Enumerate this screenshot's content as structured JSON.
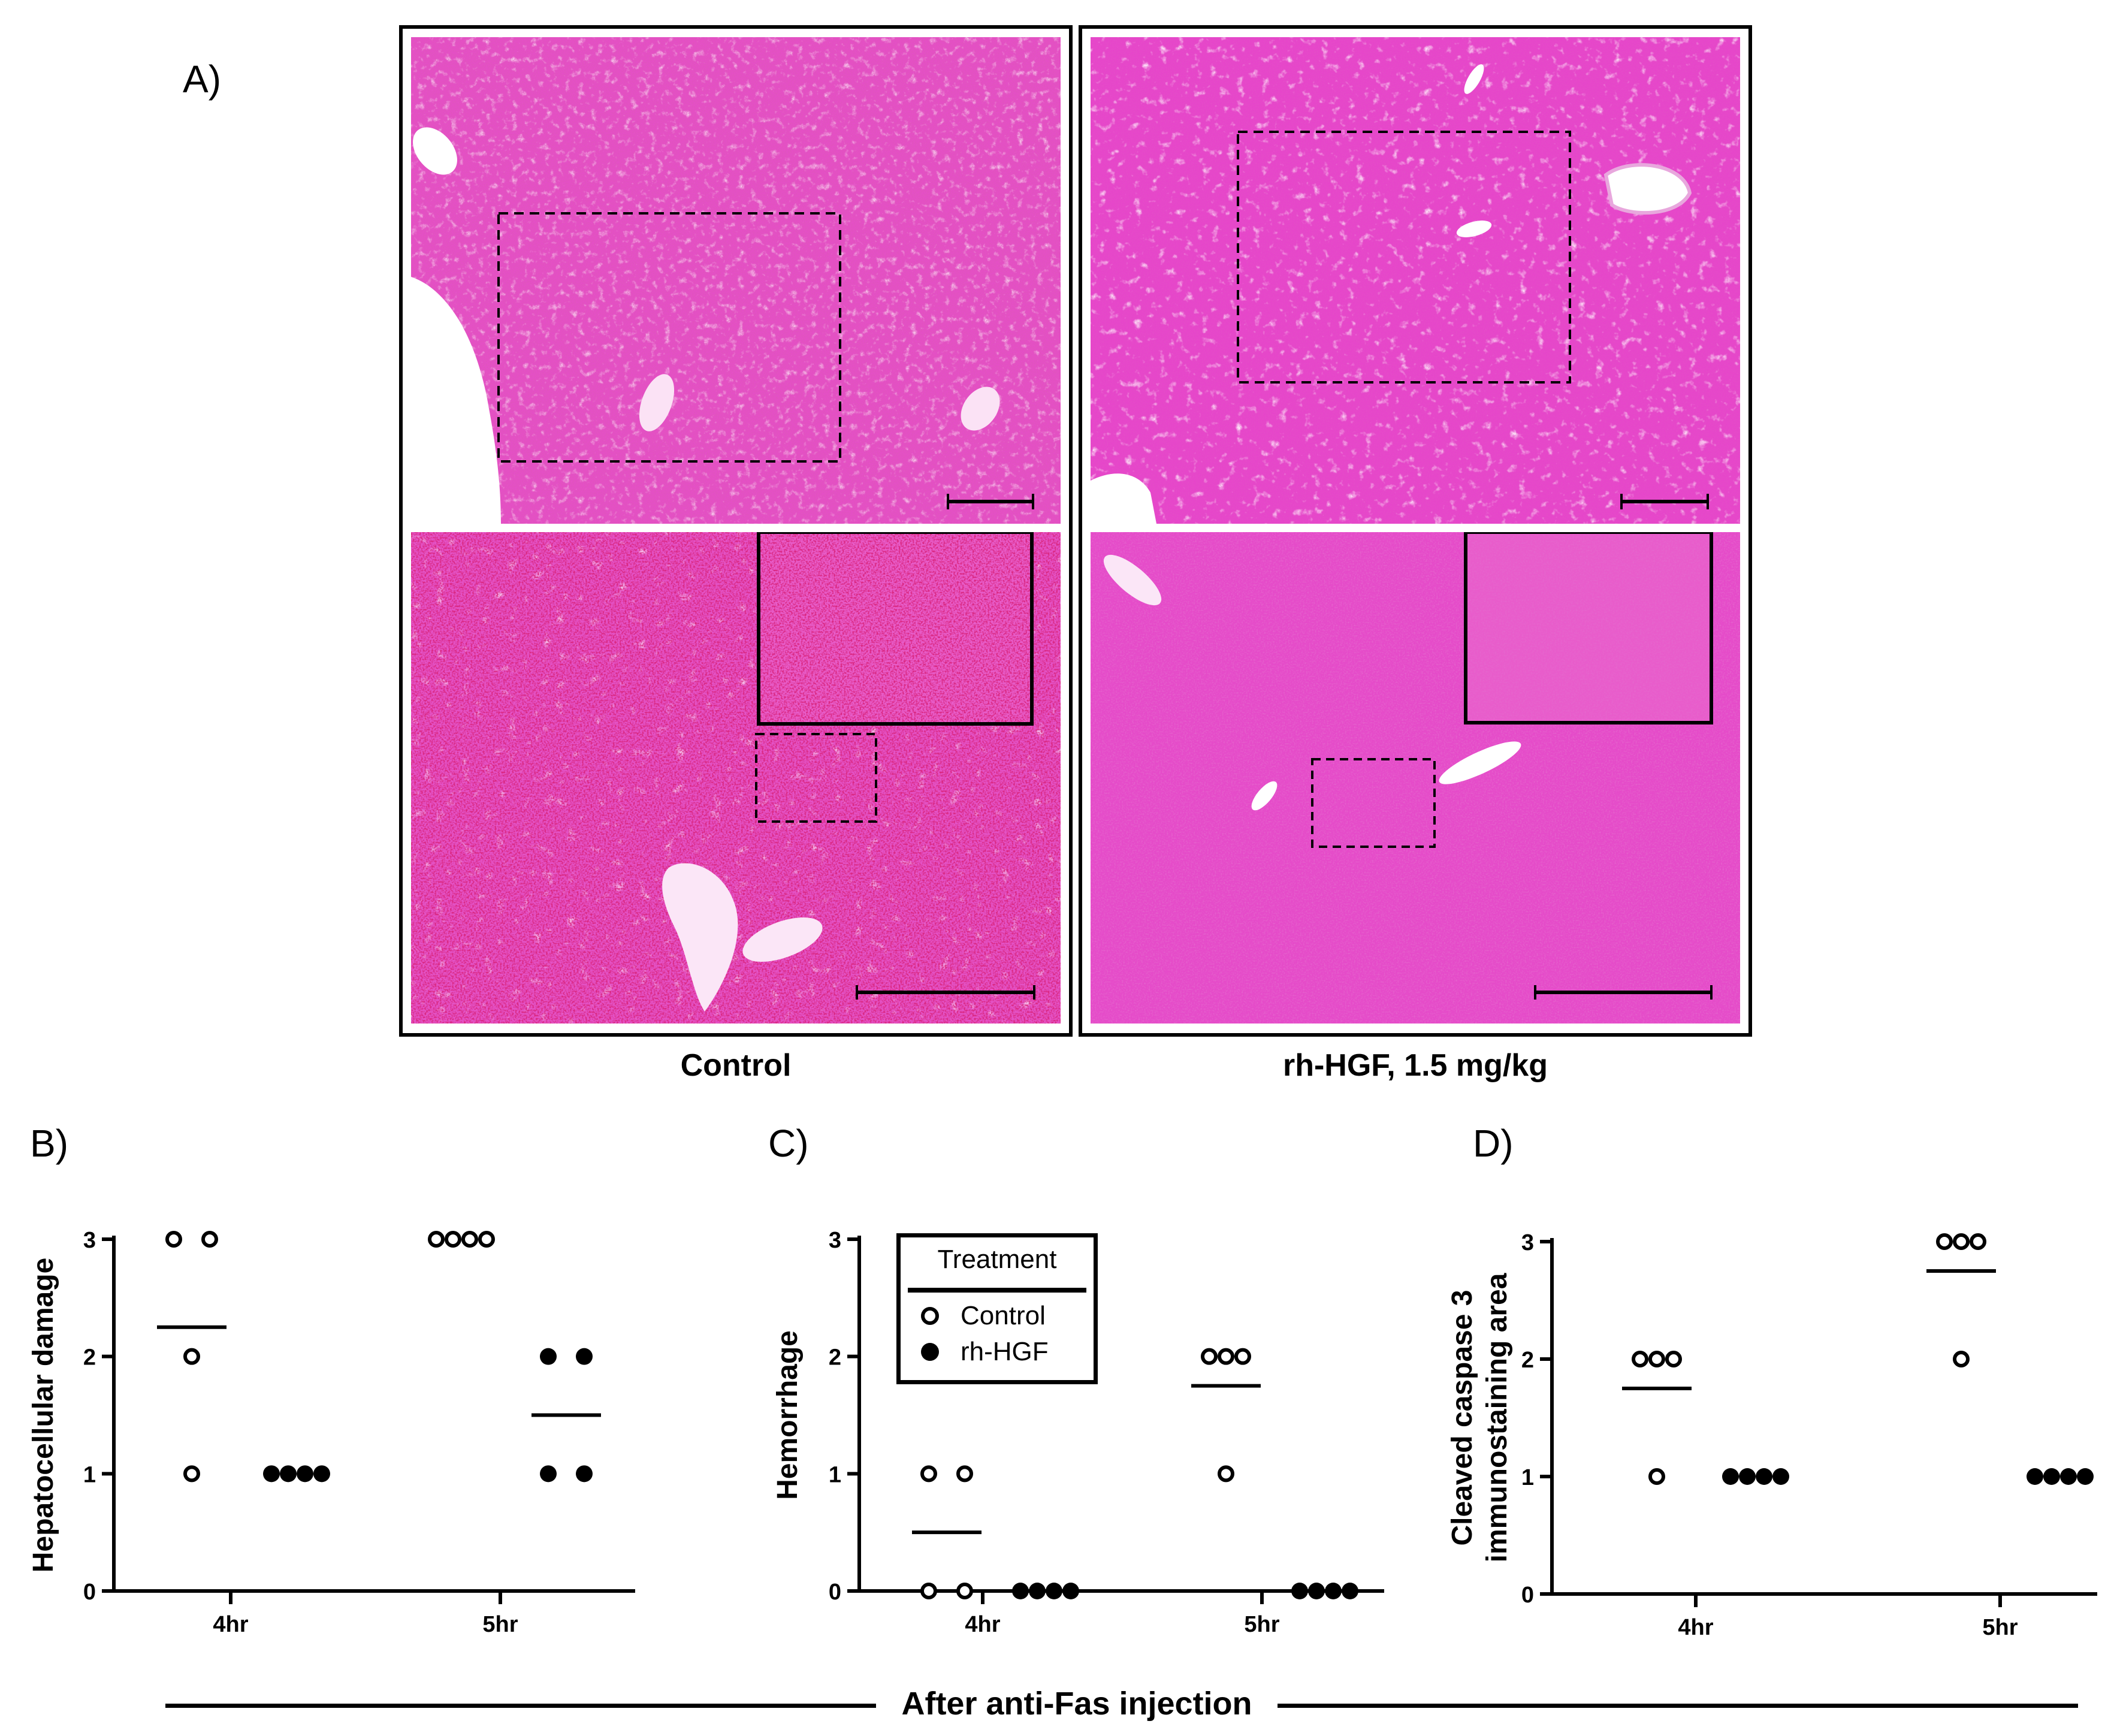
{
  "panel_a": {
    "letter": "A)",
    "groups": [
      {
        "caption": "Control"
      },
      {
        "caption": "rh-HGF, 1.5 mg/kg"
      }
    ],
    "colors": {
      "tissue": "#e53fc6",
      "tissue_light": "#f07ad9",
      "blood": "#c21041",
      "frame": "#000000"
    }
  },
  "panel_b": {
    "letter": "B)"
  },
  "panel_c": {
    "letter": "C)"
  },
  "panel_d": {
    "letter": "D)"
  },
  "legend": {
    "title": "Treatment",
    "items": [
      {
        "label": "Control",
        "marker": "open-circle"
      },
      {
        "label": "rh-HGF",
        "marker": "filled-circle"
      }
    ]
  },
  "footer": {
    "label": "After anti-Fas injection"
  },
  "chart_data": [
    {
      "type": "scatter",
      "panel": "B",
      "ylabel": "Hepatocellular damage",
      "ylim": [
        0,
        3
      ],
      "yticks": [
        "0",
        "1",
        "2",
        "3"
      ],
      "categories": [
        "4hr",
        "5hr"
      ],
      "series": [
        {
          "name": "Control",
          "marker": "open-circle",
          "values": [
            [
              3,
              3,
              2,
              1
            ],
            [
              3,
              3,
              3,
              3
            ]
          ],
          "means": [
            2.25,
            3
          ]
        },
        {
          "name": "rh-HGF",
          "marker": "filled-circle",
          "values": [
            [
              1,
              1,
              1,
              1
            ],
            [
              2,
              2,
              1,
              1
            ]
          ],
          "means": [
            1,
            1.5
          ]
        }
      ]
    },
    {
      "type": "scatter",
      "panel": "C",
      "ylabel": "Hemorrhage",
      "ylim": [
        0,
        3
      ],
      "yticks": [
        "0",
        "1",
        "2",
        "3"
      ],
      "categories": [
        "4hr",
        "5hr"
      ],
      "series": [
        {
          "name": "Control",
          "marker": "open-circle",
          "values": [
            [
              1,
              1,
              0,
              0
            ],
            [
              2,
              2,
              2,
              1
            ]
          ],
          "means": [
            0.5,
            1.75
          ]
        },
        {
          "name": "rh-HGF",
          "marker": "filled-circle",
          "values": [
            [
              0,
              0,
              0,
              0
            ],
            [
              0,
              0,
              0,
              0
            ]
          ],
          "means": [
            0,
            0
          ]
        }
      ]
    },
    {
      "type": "scatter",
      "panel": "D",
      "ylabel": "Cleaved caspase 3 immunostaining area",
      "ylabel_lines": [
        "Cleaved caspase 3",
        "immunostaining area"
      ],
      "ylim": [
        0,
        3
      ],
      "yticks": [
        "0",
        "1",
        "2",
        "3"
      ],
      "categories": [
        "4hr",
        "5hr"
      ],
      "series": [
        {
          "name": "Control",
          "marker": "open-circle",
          "values": [
            [
              2,
              2,
              2,
              1
            ],
            [
              3,
              3,
              3,
              2
            ]
          ],
          "means": [
            1.75,
            2.75
          ]
        },
        {
          "name": "rh-HGF",
          "marker": "filled-circle",
          "values": [
            [
              1,
              1,
              1,
              1
            ],
            [
              1,
              1,
              1,
              1
            ]
          ],
          "means": [
            1,
            1
          ]
        }
      ]
    }
  ]
}
